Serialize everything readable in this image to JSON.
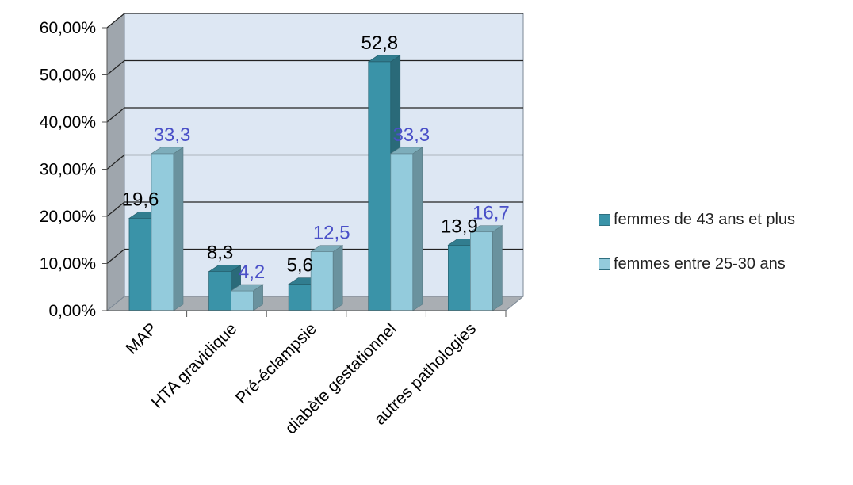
{
  "chart_data": {
    "type": "bar",
    "categories": [
      "MAP",
      "HTA gravidique",
      "Pré-éclampsie",
      "diabète gestationnel",
      "autres pathologies"
    ],
    "series": [
      {
        "name": "femmes de 43 ans et plus",
        "values": [
          19.6,
          8.3,
          5.6,
          52.8,
          13.9
        ],
        "labels": [
          "19,6",
          "8,3",
          "5,6",
          "52,8",
          "13,9"
        ],
        "color": "#3a93a8",
        "label_color": "#000000"
      },
      {
        "name": "femmes entre 25-30 ans",
        "values": [
          33.3,
          4.2,
          12.5,
          33.3,
          16.7
        ],
        "labels": [
          "33,3",
          "4,2",
          "12,5",
          "33,3",
          "16,7"
        ],
        "color": "#93cbdc",
        "label_color": "#4a50c8"
      }
    ],
    "y_ticks": [
      "0,00%",
      "10,00%",
      "20,00%",
      "30,00%",
      "40,00%",
      "50,00%",
      "60,00%"
    ],
    "ylim": [
      0,
      60
    ],
    "grid": true,
    "legend_position": "right",
    "style": "3d-clustered-column"
  }
}
